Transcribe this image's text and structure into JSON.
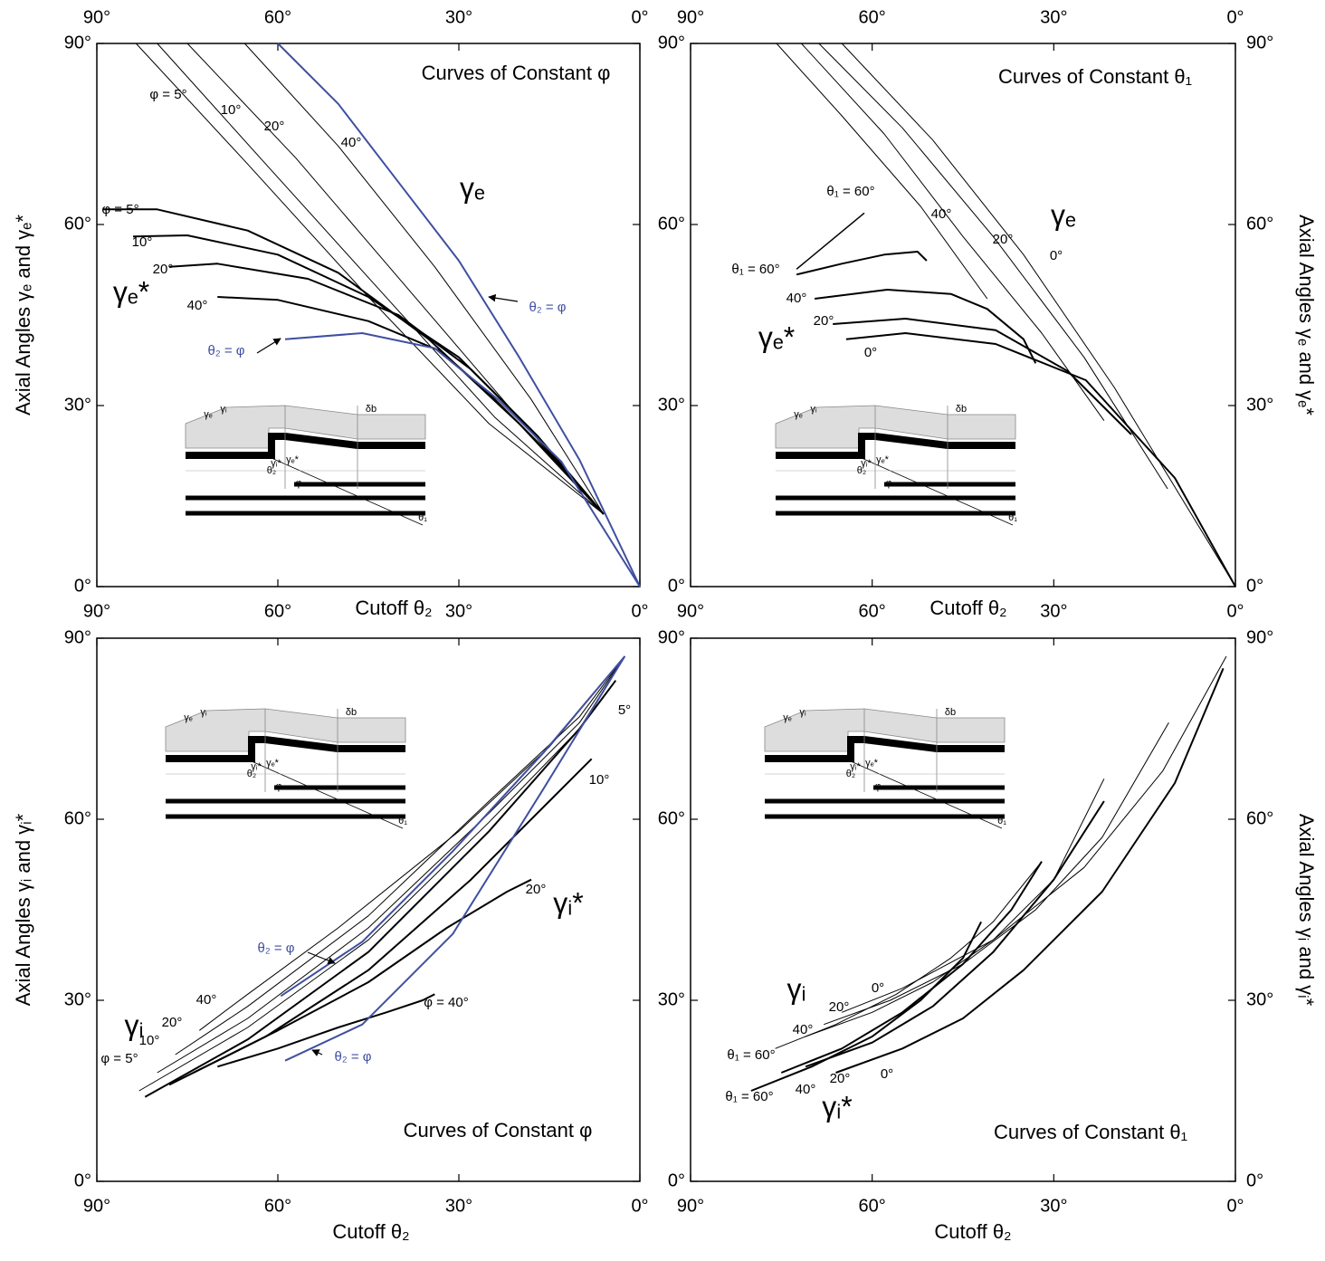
{
  "chart_data": [
    {
      "type": "line",
      "title": "Curves of Constant φ",
      "xlabel": "Cutoff θ₂",
      "ylabel": "Axial Angles γₑ and γₑ*",
      "xlim": [
        90,
        0
      ],
      "ylim": [
        0,
        90
      ],
      "xticks": [
        {
          "value": 90,
          "label": "90°"
        },
        {
          "value": 60,
          "label": "60°"
        },
        {
          "value": 30,
          "label": "30°"
        },
        {
          "value": 0,
          "label": "0°"
        }
      ],
      "yticks": [
        {
          "value": 0,
          "label": "0°"
        },
        {
          "value": 30,
          "label": "30°"
        },
        {
          "value": 60,
          "label": "60°"
        },
        {
          "value": 90,
          "label": "90°"
        }
      ],
      "series": [
        {
          "name": "φ = 5°",
          "color": "#000000",
          "width": 1,
          "x": [
            83.5,
            65,
            45,
            25,
            6
          ],
          "values": [
            90,
            70,
            48,
            27,
            12
          ]
        },
        {
          "name": "10°",
          "color": "#000000",
          "width": 1,
          "x": [
            80,
            62,
            43,
            24,
            6
          ],
          "values": [
            90,
            70,
            49,
            28,
            12
          ]
        },
        {
          "name": "20°",
          "color": "#000000",
          "width": 1,
          "x": [
            75,
            57,
            39,
            21,
            6
          ],
          "values": [
            90,
            71,
            50,
            29,
            12
          ]
        },
        {
          "name": "40°",
          "color": "#000000",
          "width": 1,
          "x": [
            65.5,
            50,
            34,
            18,
            6
          ],
          "values": [
            90,
            73,
            53,
            31,
            12
          ]
        },
        {
          "name": "φ = 5°",
          "color": "#000000",
          "width": 2,
          "x": [
            89,
            80,
            65,
            50,
            35,
            20,
            6
          ],
          "values": [
            62.5,
            62.5,
            59,
            52,
            41,
            27,
            12
          ]
        },
        {
          "name": "10°",
          "color": "#000000",
          "width": 2,
          "x": [
            84,
            75,
            60,
            45,
            30,
            18,
            6
          ],
          "values": [
            58,
            58.2,
            55,
            48,
            38,
            26,
            12
          ]
        },
        {
          "name": "20°",
          "color": "#000000",
          "width": 2,
          "x": [
            78,
            70,
            55,
            40,
            28,
            17,
            6
          ],
          "values": [
            53,
            53.5,
            51,
            45,
            36,
            25,
            12
          ]
        },
        {
          "name": "40°",
          "color": "#000000",
          "width": 2,
          "x": [
            70,
            60,
            45,
            33,
            25,
            15,
            6
          ],
          "values": [
            48,
            47.5,
            44,
            39,
            32,
            22,
            12
          ]
        },
        {
          "name": "θ₂ = φ",
          "color": "#3f4fa0",
          "width": 2,
          "x": [
            60,
            50,
            40,
            30,
            20,
            10,
            0
          ],
          "values": [
            90,
            80,
            67,
            54,
            38,
            21,
            0
          ]
        },
        {
          "name": "θ₂ = φ",
          "color": "#3f4fa0",
          "width": 2,
          "x": [
            58.8,
            46,
            34,
            23.5,
            13,
            0
          ],
          "values": [
            41,
            42,
            39.5,
            31,
            20.7,
            0
          ]
        }
      ],
      "annotations": [
        {
          "text": "γₑ"
        },
        {
          "text": "γₑ*"
        }
      ],
      "inset_labels": [
        "γₑ",
        "γᵢ",
        "δb",
        "γᵢ*",
        "γₑ*",
        "θ₂",
        "φ",
        "θ₁"
      ]
    },
    {
      "type": "line",
      "title": "Curves of Constant θ₁",
      "xlabel": "Cutoff θ₂",
      "ylabel": "Axial Angles γₑ and γₑ*",
      "xlim": [
        90,
        0
      ],
      "ylim": [
        0,
        90
      ],
      "xticks": [
        {
          "value": 90,
          "label": "90°"
        },
        {
          "value": 60,
          "label": "60°"
        },
        {
          "value": 30,
          "label": "30°"
        },
        {
          "value": 0,
          "label": "0°"
        }
      ],
      "yticks": [
        {
          "value": 0,
          "label": "0°"
        },
        {
          "value": 30,
          "label": "30°"
        },
        {
          "value": 60,
          "label": "60°"
        },
        {
          "value": 90,
          "label": "90°"
        }
      ],
      "series": [
        {
          "color": "#000000",
          "width": 1,
          "x": [
            75.8,
            65,
            52,
            41
          ],
          "values": [
            90,
            78,
            63,
            47.7
          ]
        },
        {
          "name": "40°",
          "color": "#000000",
          "width": 1,
          "x": [
            71.7,
            58,
            45,
            32,
            21.7
          ],
          "values": [
            90,
            75,
            58,
            42,
            27.5
          ]
        },
        {
          "name": "20°",
          "color": "#000000",
          "width": 1,
          "x": [
            68.8,
            55,
            40,
            25,
            11.2
          ],
          "values": [
            90,
            76,
            58,
            38,
            16.2
          ]
        },
        {
          "name": "0°",
          "color": "#000000",
          "width": 1,
          "x": [
            65,
            50,
            35,
            20,
            0
          ],
          "values": [
            90,
            74,
            55,
            33,
            0
          ]
        },
        {
          "name": "θ₁ = 60°",
          "color": "#000000",
          "width": 1.5,
          "x": [
            72.5,
            61.3
          ],
          "values": [
            52.6,
            61.9
          ]
        },
        {
          "name": "θ₁ = 60°",
          "color": "#000000",
          "width": 2,
          "x": [
            72.5,
            65,
            58,
            52.5,
            51
          ],
          "values": [
            51.7,
            53.5,
            55,
            55.5,
            54
          ]
        },
        {
          "name": "40°",
          "color": "#000000",
          "width": 2,
          "x": [
            69.5,
            57.5,
            47,
            41,
            35,
            33
          ],
          "values": [
            47.7,
            49.2,
            48.5,
            46,
            41,
            37
          ]
        },
        {
          "name": "20°",
          "color": "#000000",
          "width": 2,
          "x": [
            66.5,
            54.5,
            39.6,
            27.7,
            17.2
          ],
          "values": [
            43.5,
            44.4,
            42.5,
            35.7,
            25.2
          ]
        },
        {
          "name": "0°",
          "color": "#000000",
          "width": 2,
          "x": [
            64.3,
            54.5,
            39.6,
            24.7,
            10,
            0
          ],
          "values": [
            41,
            42,
            40.2,
            34.2,
            18,
            0
          ]
        }
      ],
      "annotations": [
        {
          "text": "γₑ"
        },
        {
          "text": "γₑ*"
        }
      ],
      "inset_labels": [
        "γₑ",
        "γᵢ",
        "δb",
        "γᵢ*",
        "γₑ*",
        "θ₂",
        "φ",
        "θ₁"
      ]
    },
    {
      "type": "line",
      "title": "Curves of Constant φ",
      "xlabel": "Cutoff θ₂",
      "ylabel": "Axial Angles γᵢ and γᵢ*",
      "xlim": [
        90,
        0
      ],
      "ylim": [
        0,
        90
      ],
      "xticks": [
        {
          "value": 90,
          "label": "90°"
        },
        {
          "value": 60,
          "label": "60°"
        },
        {
          "value": 30,
          "label": "30°"
        },
        {
          "value": 0,
          "label": "0°"
        }
      ],
      "yticks": [
        {
          "value": 0,
          "label": "0°"
        },
        {
          "value": 30,
          "label": "30°"
        },
        {
          "value": 60,
          "label": "60°"
        },
        {
          "value": 90,
          "label": "90°"
        }
      ],
      "series": [
        {
          "name": "φ = 5°",
          "color": "#000000",
          "width": 1,
          "x": [
            83,
            65,
            45,
            25,
            10,
            2.5
          ],
          "values": [
            15,
            25.5,
            40,
            59.5,
            75,
            87
          ]
        },
        {
          "name": "10°",
          "color": "#000000",
          "width": 1,
          "x": [
            80,
            65,
            45,
            25,
            10,
            2.5
          ],
          "values": [
            18,
            27,
            42,
            61,
            76,
            87
          ]
        },
        {
          "name": "20°",
          "color": "#000000",
          "width": 1,
          "x": [
            77,
            65,
            45,
            25,
            10,
            2.5
          ],
          "values": [
            21,
            29,
            44,
            63,
            77,
            87
          ]
        },
        {
          "name": "40°",
          "color": "#000000",
          "width": 1,
          "x": [
            73,
            65,
            50,
            30,
            15,
            2.5
          ],
          "values": [
            25,
            31,
            42,
            58,
            72,
            87
          ]
        },
        {
          "name": "5°",
          "color": "#000000",
          "width": 2,
          "x": [
            82,
            65,
            45,
            25,
            10,
            4
          ],
          "values": [
            14,
            23.5,
            38,
            58,
            75,
            83
          ]
        },
        {
          "name": "10°",
          "color": "#000000",
          "width": 2,
          "x": [
            78,
            62,
            45,
            28,
            15,
            8
          ],
          "values": [
            16,
            24,
            35,
            50,
            63,
            70
          ]
        },
        {
          "name": "20°",
          "color": "#000000",
          "width": 2,
          "x": [
            74,
            60,
            45,
            32,
            22,
            18
          ],
          "values": [
            18,
            25,
            33,
            42,
            48,
            50
          ]
        },
        {
          "name": "φ = 40°",
          "color": "#000000",
          "width": 2,
          "x": [
            70,
            60,
            50,
            42,
            36,
            34
          ],
          "values": [
            19,
            22,
            25.5,
            28,
            30,
            31
          ]
        },
        {
          "name": "θ₂ = φ",
          "color": "#3f4fa0",
          "width": 2,
          "x": [
            59.5,
            46,
            31,
            16,
            2.5
          ],
          "values": [
            30.7,
            39.7,
            54.7,
            71,
            87
          ]
        },
        {
          "name": "θ₂ = φ",
          "color": "#3f4fa0",
          "width": 2,
          "x": [
            58.8,
            46,
            31,
            16,
            2.5
          ],
          "values": [
            20,
            26,
            41,
            65,
            87
          ]
        }
      ],
      "annotations": [
        {
          "text": "γᵢ"
        },
        {
          "text": "γᵢ*"
        }
      ],
      "inset_labels": [
        "γₑ",
        "γᵢ",
        "δb",
        "γᵢ*",
        "γₑ*",
        "θ₂",
        "φ",
        "θ₁"
      ]
    },
    {
      "type": "line",
      "title": "Curves of Constant θ₁",
      "xlabel": "Cutoff θ₂",
      "ylabel": "Axial Angles γᵢ and γᵢ*",
      "xlim": [
        90,
        0
      ],
      "ylim": [
        0,
        90
      ],
      "xticks": [
        {
          "value": 90,
          "label": "90°"
        },
        {
          "value": 60,
          "label": "60°"
        },
        {
          "value": 30,
          "label": "30°"
        },
        {
          "value": 0,
          "label": "0°"
        }
      ],
      "yticks": [
        {
          "value": 0,
          "label": "0°"
        },
        {
          "value": 30,
          "label": "30°"
        },
        {
          "value": 60,
          "label": "60°"
        },
        {
          "value": 90,
          "label": "90°"
        }
      ],
      "series": [
        {
          "name": "0°",
          "color": "#000000",
          "width": 1,
          "x": [
            65,
            55,
            40,
            25,
            12,
            1.5
          ],
          "values": [
            28,
            32,
            40,
            52,
            68,
            87
          ]
        },
        {
          "name": "20°",
          "color": "#000000",
          "width": 1,
          "x": [
            68,
            57,
            45,
            33,
            22,
            11
          ],
          "values": [
            26,
            30,
            36,
            45,
            57,
            76
          ]
        },
        {
          "name": "40°",
          "color": "#000000",
          "width": 1,
          "x": [
            71,
            60,
            50,
            40,
            30,
            21.7
          ],
          "values": [
            24,
            28,
            33,
            40,
            50,
            66.7
          ]
        },
        {
          "name": "θ₁ = 60°",
          "color": "#000000",
          "width": 1,
          "x": [
            76,
            66,
            56,
            47,
            40,
            32
          ],
          "values": [
            22,
            26,
            31,
            37,
            43,
            53
          ]
        },
        {
          "name": "θ₁ = 60°",
          "color": "#000000",
          "width": 2,
          "x": [
            80,
            70,
            60,
            52,
            45,
            42
          ],
          "values": [
            15,
            19,
            24,
            30,
            37,
            43
          ]
        },
        {
          "name": "40°",
          "color": "#000000",
          "width": 2,
          "x": [
            75,
            65,
            55,
            45,
            37,
            32
          ],
          "values": [
            18,
            22,
            28,
            36,
            45,
            53
          ]
        },
        {
          "name": "20°",
          "color": "#000000",
          "width": 2,
          "x": [
            71,
            60,
            50,
            40,
            30,
            21.7
          ],
          "values": [
            19,
            23,
            29,
            38,
            50,
            63
          ]
        },
        {
          "name": "0°",
          "color": "#000000",
          "width": 2,
          "x": [
            66,
            55,
            45,
            35,
            22,
            10,
            2
          ],
          "values": [
            18,
            22,
            27,
            35,
            48,
            66,
            85
          ]
        }
      ],
      "annotations": [
        {
          "text": "γᵢ"
        },
        {
          "text": "γᵢ*"
        }
      ],
      "inset_labels": [
        "γₑ",
        "γᵢ",
        "δb",
        "γᵢ*",
        "γₑ*",
        "θ₂",
        "φ",
        "θ₁"
      ]
    }
  ]
}
